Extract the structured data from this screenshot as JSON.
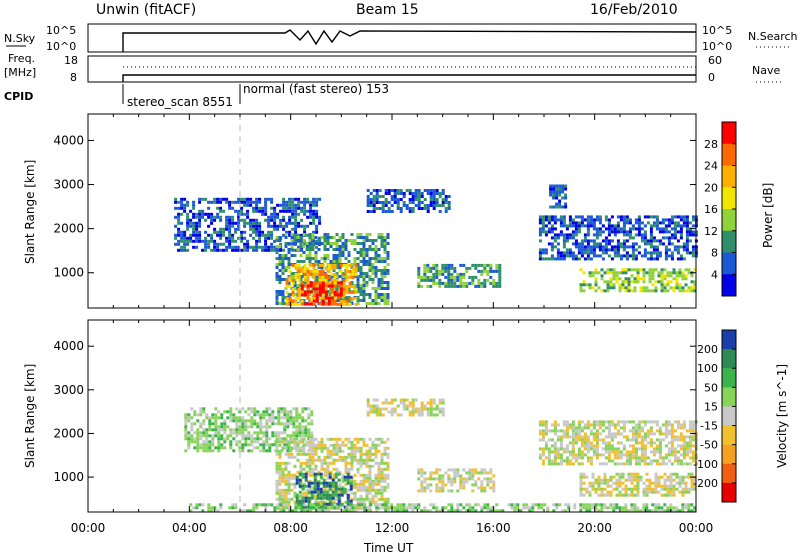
{
  "header": {
    "station_title": "Unwin (fitACF)",
    "beam": "Beam 15",
    "date": "16/Feb/2010"
  },
  "panels": {
    "nsky": {
      "label": "N.Sky",
      "right_label": "N.Search",
      "left_ticks": [
        "10^5",
        "10^0"
      ],
      "right_ticks": [
        "10^5",
        "10^0"
      ]
    },
    "freq": {
      "label_line1": "Freq.",
      "label_line2": "[MHz]",
      "right_label": "Nave",
      "left_ticks": [
        "18",
        "8"
      ],
      "right_ticks": [
        "60",
        "0"
      ]
    },
    "cpid": {
      "label": "CPID",
      "mode1": "stereo_scan 8551",
      "mode2": "normal (fast stereo) 153"
    }
  },
  "chart_data": [
    {
      "type": "heatmap",
      "name": "power",
      "ylabel": "Slant Range [km]",
      "xlabel": "",
      "yticks": [
        "1000",
        "2000",
        "3000",
        "4000"
      ],
      "ylim": [
        200,
        4600
      ],
      "xlim": [
        0,
        24
      ],
      "colorbar": {
        "label": "Power [dB]",
        "ticks": [
          "28",
          "24",
          "20",
          "16",
          "12",
          "8",
          "4"
        ],
        "colors": [
          "#ff0000",
          "#ff6a00",
          "#ffb000",
          "#f2e600",
          "#8fd23c",
          "#2f8f6a",
          "#1c59d6",
          "#0000e6"
        ]
      },
      "regions": [
        {
          "t": [
            3.4,
            9.2
          ],
          "r": [
            1500,
            2700
          ],
          "level": 1
        },
        {
          "t": [
            7.4,
            11.8
          ],
          "r": [
            300,
            1900
          ],
          "level": 2
        },
        {
          "t": [
            7.8,
            10.6
          ],
          "r": [
            300,
            1200
          ],
          "level": 5
        },
        {
          "t": [
            8.4,
            10.0
          ],
          "r": [
            300,
            800
          ],
          "level": 7
        },
        {
          "t": [
            11.0,
            14.2
          ],
          "r": [
            2400,
            2900
          ],
          "level": 1
        },
        {
          "t": [
            13.0,
            16.2
          ],
          "r": [
            700,
            1200
          ],
          "level": 2
        },
        {
          "t": [
            18.2,
            18.8
          ],
          "r": [
            2500,
            3000
          ],
          "level": 1
        },
        {
          "t": [
            17.8,
            24.0
          ],
          "r": [
            1300,
            2300
          ],
          "level": 1
        },
        {
          "t": [
            19.4,
            24.0
          ],
          "r": [
            600,
            1100
          ],
          "level": 3
        }
      ]
    },
    {
      "type": "heatmap",
      "name": "velocity",
      "ylabel": "Slant Range [km]",
      "xlabel": "Time UT",
      "yticks": [
        "1000",
        "2000",
        "3000",
        "4000"
      ],
      "xticks": [
        "00:00",
        "04:00",
        "08:00",
        "12:00",
        "16:00",
        "20:00",
        "00:00"
      ],
      "ylim": [
        200,
        4600
      ],
      "xlim": [
        0,
        24
      ],
      "colorbar": {
        "label": "Velocity [m s^-1]",
        "ticks": [
          "200",
          "100",
          "50",
          "15",
          "-15",
          "-50",
          "-100",
          "-200"
        ],
        "colors": [
          "#1a3fa8",
          "#2e8b57",
          "#3cb44b",
          "#88d35a",
          "#c8c8c8",
          "#f0c030",
          "#f5a020",
          "#f06010",
          "#e60000"
        ]
      },
      "regions": [
        {
          "t": [
            3.8,
            8.8
          ],
          "r": [
            1600,
            2600
          ],
          "level": 5
        },
        {
          "t": [
            7.4,
            11.8
          ],
          "r": [
            300,
            1900
          ],
          "level": 4
        },
        {
          "t": [
            8.2,
            10.4
          ],
          "r": [
            300,
            1100
          ],
          "level": 7
        },
        {
          "t": [
            11.0,
            14.0
          ],
          "r": [
            2400,
            2800
          ],
          "level": 4
        },
        {
          "t": [
            13.0,
            16.0
          ],
          "r": [
            700,
            1200
          ],
          "level": 4
        },
        {
          "t": [
            17.8,
            24.0
          ],
          "r": [
            1300,
            2300
          ],
          "level": 4
        },
        {
          "t": [
            19.4,
            24.0
          ],
          "r": [
            600,
            1100
          ],
          "level": 4
        },
        {
          "t": [
            4.0,
            24.0
          ],
          "r": [
            200,
            400
          ],
          "level": 5
        }
      ]
    }
  ]
}
